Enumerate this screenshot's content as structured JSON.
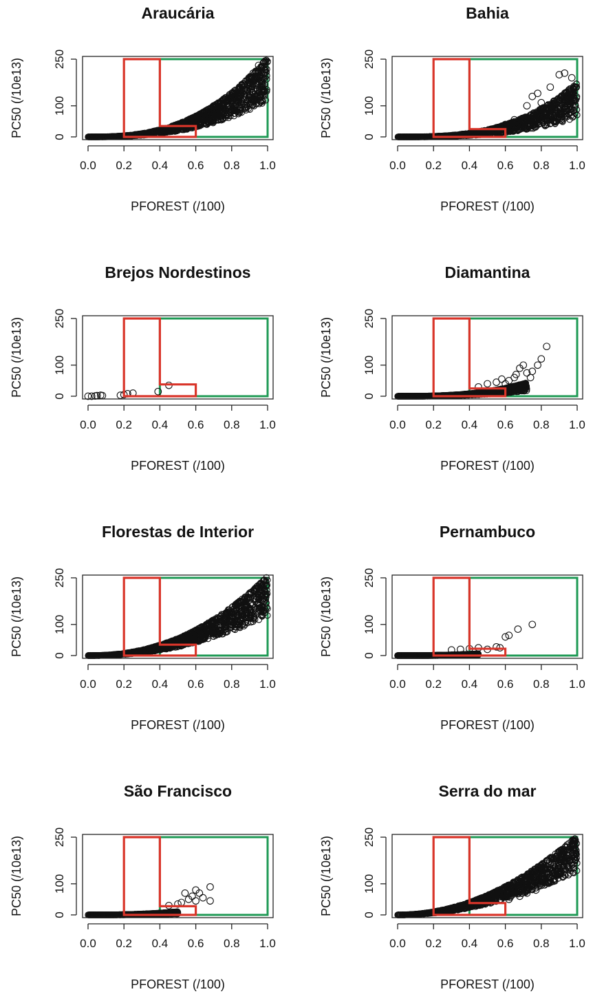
{
  "chart_data": [
    {
      "type": "scatter",
      "title": "Araucária",
      "xlabel": "PFOREST (/100)",
      "ylabel": "PC50 (/10e13)",
      "xlim": [
        0,
        1
      ],
      "ylim": [
        0,
        250
      ],
      "xticks": [
        "0.0",
        "0.2",
        "0.4",
        "0.6",
        "0.8",
        "1.0"
      ],
      "yticks": [
        "0",
        "100",
        "250"
      ],
      "curve": {
        "k": 255,
        "p": 2.6,
        "spread": 0.55
      },
      "points": [
        [
          0.62,
          60
        ],
        [
          0.65,
          80
        ],
        [
          0.68,
          75
        ],
        [
          0.7,
          100
        ],
        [
          0.72,
          90
        ],
        [
          0.75,
          85
        ],
        [
          0.78,
          95
        ],
        [
          0.8,
          110
        ],
        [
          0.85,
          120
        ],
        [
          0.88,
          180
        ],
        [
          0.9,
          190
        ],
        [
          0.92,
          205
        ],
        [
          0.95,
          230
        ],
        [
          0.98,
          240
        ]
      ],
      "red_region": [
        [
          0.2,
          0
        ],
        [
          0.6,
          0
        ],
        [
          0.6,
          35
        ],
        [
          0.4,
          35
        ],
        [
          0.4,
          250
        ],
        [
          0.2,
          250
        ]
      ],
      "green_region": [
        [
          0.4,
          0
        ],
        [
          1.0,
          0
        ],
        [
          1.0,
          250
        ],
        [
          0.4,
          250
        ]
      ],
      "grid": false
    },
    {
      "type": "scatter",
      "title": "Bahia",
      "xlabel": "PFOREST (/100)",
      "ylabel": "PC50 (/10e13)",
      "xlim": [
        0,
        1
      ],
      "ylim": [
        0,
        250
      ],
      "xticks": [
        "0.0",
        "0.2",
        "0.4",
        "0.6",
        "0.8",
        "1.0"
      ],
      "yticks": [
        "0",
        "100",
        "250"
      ],
      "curve": {
        "k": 175,
        "p": 2.9,
        "spread": 0.65
      },
      "points": [
        [
          0.6,
          40
        ],
        [
          0.65,
          55
        ],
        [
          0.7,
          60
        ],
        [
          0.72,
          100
        ],
        [
          0.75,
          130
        ],
        [
          0.78,
          140
        ],
        [
          0.8,
          90
        ],
        [
          0.8,
          110
        ],
        [
          0.82,
          70
        ],
        [
          0.85,
          160
        ],
        [
          0.9,
          200
        ],
        [
          0.93,
          205
        ],
        [
          0.97,
          190
        ]
      ],
      "red_region": [
        [
          0.2,
          0
        ],
        [
          0.6,
          0
        ],
        [
          0.6,
          25
        ],
        [
          0.4,
          25
        ],
        [
          0.4,
          250
        ],
        [
          0.2,
          250
        ]
      ],
      "green_region": [
        [
          0.4,
          0
        ],
        [
          1.0,
          0
        ],
        [
          1.0,
          250
        ],
        [
          0.4,
          250
        ]
      ],
      "grid": false
    },
    {
      "type": "scatter",
      "title": "Brejos Nordestinos",
      "xlabel": "PFOREST (/100)",
      "ylabel": "PC50 (/10e13)",
      "xlim": [
        0,
        1
      ],
      "ylim": [
        0,
        250
      ],
      "xticks": [
        "0.0",
        "0.2",
        "0.4",
        "0.6",
        "0.8",
        "1.0"
      ],
      "yticks": [
        "0",
        "100",
        "250"
      ],
      "points": [
        [
          0.0,
          0
        ],
        [
          0.02,
          0
        ],
        [
          0.04,
          1
        ],
        [
          0.05,
          2
        ],
        [
          0.07,
          3
        ],
        [
          0.08,
          2
        ],
        [
          0.18,
          3
        ],
        [
          0.2,
          5
        ],
        [
          0.22,
          8
        ],
        [
          0.25,
          10
        ],
        [
          0.39,
          15
        ],
        [
          0.45,
          35
        ]
      ],
      "red_region": [
        [
          0.2,
          0
        ],
        [
          0.6,
          0
        ],
        [
          0.6,
          38
        ],
        [
          0.4,
          38
        ],
        [
          0.4,
          250
        ],
        [
          0.2,
          250
        ]
      ],
      "green_region": [
        [
          0.4,
          0
        ],
        [
          1.0,
          0
        ],
        [
          1.0,
          250
        ],
        [
          0.4,
          250
        ]
      ],
      "grid": false
    },
    {
      "type": "scatter",
      "title": "Diamantina",
      "xlabel": "PFOREST (/100)",
      "ylabel": "PC50 (/10e13)",
      "xlim": [
        0,
        1
      ],
      "ylim": [
        0,
        250
      ],
      "xticks": [
        "0.0",
        "0.2",
        "0.4",
        "0.6",
        "0.8",
        "1.0"
      ],
      "yticks": [
        "0",
        "100",
        "250"
      ],
      "curve": {
        "k": 110,
        "p": 2.8,
        "spread": 0.6,
        "xmax": 0.72
      },
      "points": [
        [
          0.45,
          30
        ],
        [
          0.5,
          40
        ],
        [
          0.55,
          45
        ],
        [
          0.58,
          55
        ],
        [
          0.6,
          40
        ],
        [
          0.62,
          50
        ],
        [
          0.65,
          60
        ],
        [
          0.66,
          70
        ],
        [
          0.68,
          90
        ],
        [
          0.7,
          100
        ],
        [
          0.72,
          75
        ],
        [
          0.74,
          60
        ],
        [
          0.75,
          80
        ],
        [
          0.78,
          100
        ],
        [
          0.8,
          120
        ],
        [
          0.83,
          160
        ]
      ],
      "red_region": [
        [
          0.2,
          0
        ],
        [
          0.6,
          0
        ],
        [
          0.6,
          25
        ],
        [
          0.4,
          25
        ],
        [
          0.4,
          250
        ],
        [
          0.2,
          250
        ]
      ],
      "green_region": [
        [
          0.4,
          0
        ],
        [
          1.0,
          0
        ],
        [
          1.0,
          250
        ],
        [
          0.4,
          250
        ]
      ],
      "grid": false
    },
    {
      "type": "scatter",
      "title": "Florestas de Interior",
      "xlabel": "PFOREST (/100)",
      "ylabel": "PC50 (/10e13)",
      "xlim": [
        0,
        1
      ],
      "ylim": [
        0,
        250
      ],
      "xticks": [
        "0.0",
        "0.2",
        "0.4",
        "0.6",
        "0.8",
        "1.0"
      ],
      "yticks": [
        "0",
        "100",
        "250"
      ],
      "curve": {
        "k": 255,
        "p": 2.2,
        "spread": 0.5
      },
      "points": [
        [
          0.6,
          60
        ],
        [
          0.65,
          70
        ],
        [
          0.7,
          80
        ],
        [
          0.75,
          100
        ],
        [
          0.8,
          120
        ],
        [
          0.85,
          160
        ],
        [
          0.9,
          180
        ],
        [
          0.93,
          210
        ],
        [
          0.96,
          230
        ],
        [
          0.98,
          240
        ],
        [
          0.99,
          170
        ]
      ],
      "red_region": [
        [
          0.2,
          0
        ],
        [
          0.6,
          0
        ],
        [
          0.6,
          35
        ],
        [
          0.4,
          35
        ],
        [
          0.4,
          250
        ],
        [
          0.2,
          250
        ]
      ],
      "green_region": [
        [
          0.4,
          0
        ],
        [
          1.0,
          0
        ],
        [
          1.0,
          250
        ],
        [
          0.4,
          250
        ]
      ],
      "grid": false
    },
    {
      "type": "scatter",
      "title": "Pernambuco",
      "xlabel": "PFOREST (/100)",
      "ylabel": "PC50 (/10e13)",
      "xlim": [
        0,
        1
      ],
      "ylim": [
        0,
        250
      ],
      "xticks": [
        "0.0",
        "0.2",
        "0.4",
        "0.6",
        "0.8",
        "1.0"
      ],
      "yticks": [
        "0",
        "100",
        "250"
      ],
      "curve": {
        "k": 40,
        "p": 2.4,
        "spread": 0.7,
        "xmax": 0.45
      },
      "points": [
        [
          0.3,
          18
        ],
        [
          0.35,
          20
        ],
        [
          0.4,
          22
        ],
        [
          0.45,
          25
        ],
        [
          0.5,
          20
        ],
        [
          0.55,
          28
        ],
        [
          0.57,
          25
        ],
        [
          0.6,
          60
        ],
        [
          0.62,
          65
        ],
        [
          0.67,
          85
        ],
        [
          0.75,
          100
        ]
      ],
      "red_region": [
        [
          0.2,
          0
        ],
        [
          0.6,
          0
        ],
        [
          0.6,
          22
        ],
        [
          0.4,
          22
        ],
        [
          0.4,
          250
        ],
        [
          0.2,
          250
        ]
      ],
      "green_region": [
        [
          0.4,
          0
        ],
        [
          1.0,
          0
        ],
        [
          1.0,
          250
        ],
        [
          0.4,
          250
        ]
      ],
      "grid": false
    },
    {
      "type": "scatter",
      "title": "São Francisco",
      "xlabel": "PFOREST (/100)",
      "ylabel": "PC50 (/10e13)",
      "xlim": [
        0,
        1
      ],
      "ylim": [
        0,
        250
      ],
      "xticks": [
        "0.0",
        "0.2",
        "0.4",
        "0.6",
        "0.8",
        "1.0"
      ],
      "yticks": [
        "0",
        "100",
        "250"
      ],
      "curve": {
        "k": 60,
        "p": 2.5,
        "spread": 0.7,
        "xmax": 0.5
      },
      "points": [
        [
          0.45,
          30
        ],
        [
          0.5,
          35
        ],
        [
          0.52,
          40
        ],
        [
          0.54,
          70
        ],
        [
          0.56,
          50
        ],
        [
          0.58,
          60
        ],
        [
          0.6,
          80
        ],
        [
          0.6,
          45
        ],
        [
          0.62,
          70
        ],
        [
          0.64,
          55
        ],
        [
          0.68,
          90
        ],
        [
          0.68,
          45
        ]
      ],
      "red_region": [
        [
          0.2,
          0
        ],
        [
          0.6,
          0
        ],
        [
          0.6,
          28
        ],
        [
          0.4,
          28
        ],
        [
          0.4,
          250
        ],
        [
          0.2,
          250
        ]
      ],
      "green_region": [
        [
          0.4,
          0
        ],
        [
          1.0,
          0
        ],
        [
          1.0,
          250
        ],
        [
          0.4,
          250
        ]
      ],
      "grid": false
    },
    {
      "type": "scatter",
      "title": "Serra do mar",
      "xlabel": "PFOREST (/100)",
      "ylabel": "PC50 (/10e13)",
      "xlim": [
        0,
        1
      ],
      "ylim": [
        0,
        250
      ],
      "xticks": [
        "0.0",
        "0.2",
        "0.4",
        "0.6",
        "0.8",
        "1.0"
      ],
      "yticks": [
        "0",
        "100",
        "250"
      ],
      "curve": {
        "k": 255,
        "p": 2.0,
        "spread": 0.45
      },
      "points": [
        [
          0.62,
          50
        ],
        [
          0.68,
          60
        ],
        [
          0.72,
          70
        ],
        [
          0.77,
          80
        ],
        [
          0.8,
          95
        ],
        [
          0.85,
          110
        ],
        [
          0.88,
          130
        ],
        [
          0.9,
          150
        ],
        [
          0.93,
          175
        ],
        [
          0.96,
          200
        ],
        [
          0.98,
          230
        ]
      ],
      "red_region": [
        [
          0.2,
          0
        ],
        [
          0.6,
          0
        ],
        [
          0.6,
          38
        ],
        [
          0.4,
          38
        ],
        [
          0.4,
          250
        ],
        [
          0.2,
          250
        ]
      ],
      "green_region": [
        [
          0.4,
          0
        ],
        [
          1.0,
          0
        ],
        [
          1.0,
          250
        ],
        [
          0.4,
          250
        ]
      ],
      "grid": false
    }
  ],
  "colors": {
    "red_region": "#d9352a",
    "green_region": "#1f9a55",
    "points": "#111111",
    "axis": "#222222"
  }
}
